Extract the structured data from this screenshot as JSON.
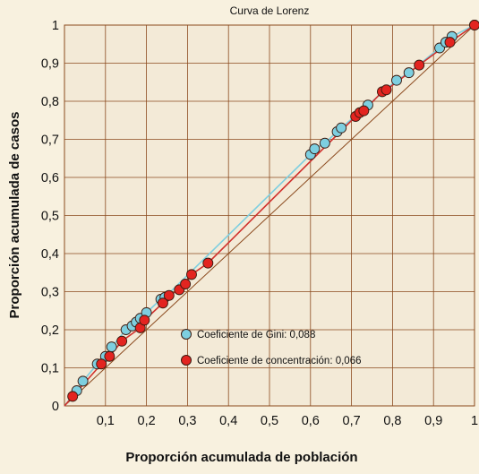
{
  "colors": {
    "background": "#f8f1df",
    "plot_background": "#f3ead7",
    "grid": "#8b4a1e",
    "diagonal": "#8b4a1e",
    "gini_fill": "#7dcfe0",
    "gini_line": "#7dcfe0",
    "conc_fill": "#e32420",
    "conc_line": "#d0312d",
    "marker_stroke": "#3a1a10",
    "text": "#111111"
  },
  "chart_data": {
    "type": "scatter",
    "title": "Curva de Lorenz",
    "xlabel": "Proporción acumulada de población",
    "ylabel": "Proporción acumulada de casos",
    "xlim": [
      0,
      1
    ],
    "ylim": [
      0,
      1
    ],
    "x_ticks": [
      "0,1",
      "0,2",
      "0,3",
      "0,4",
      "0,5",
      "0,6",
      "0,7",
      "0,8",
      "0,9",
      "1"
    ],
    "y_ticks": [
      "0",
      "0,1",
      "0,2",
      "0,3",
      "0,4",
      "0,5",
      "0,6",
      "0,7",
      "0,8",
      "0,9",
      "1"
    ],
    "grid": true,
    "legend_position": "center-inside",
    "series": [
      {
        "name": "Coeficiente de Gini: 0,088",
        "color": "#7dcfe0",
        "points": [
          [
            0.03,
            0.04
          ],
          [
            0.045,
            0.065
          ],
          [
            0.08,
            0.11
          ],
          [
            0.1,
            0.13
          ],
          [
            0.115,
            0.155
          ],
          [
            0.15,
            0.2
          ],
          [
            0.165,
            0.21
          ],
          [
            0.175,
            0.22
          ],
          [
            0.185,
            0.23
          ],
          [
            0.2,
            0.245
          ],
          [
            0.235,
            0.28
          ],
          [
            0.245,
            0.285
          ],
          [
            0.6,
            0.66
          ],
          [
            0.61,
            0.675
          ],
          [
            0.635,
            0.69
          ],
          [
            0.665,
            0.72
          ],
          [
            0.675,
            0.73
          ],
          [
            0.74,
            0.79
          ],
          [
            0.81,
            0.855
          ],
          [
            0.84,
            0.875
          ],
          [
            0.915,
            0.94
          ],
          [
            0.93,
            0.955
          ],
          [
            0.945,
            0.97
          ],
          [
            1.0,
            1.0
          ]
        ]
      },
      {
        "name": "Coeficiente de concentración: 0,066",
        "color": "#e32420",
        "points": [
          [
            0.02,
            0.025
          ],
          [
            0.09,
            0.11
          ],
          [
            0.11,
            0.13
          ],
          [
            0.14,
            0.17
          ],
          [
            0.185,
            0.205
          ],
          [
            0.195,
            0.225
          ],
          [
            0.24,
            0.27
          ],
          [
            0.255,
            0.29
          ],
          [
            0.28,
            0.305
          ],
          [
            0.295,
            0.32
          ],
          [
            0.31,
            0.345
          ],
          [
            0.35,
            0.375
          ],
          [
            0.71,
            0.76
          ],
          [
            0.72,
            0.77
          ],
          [
            0.73,
            0.775
          ],
          [
            0.775,
            0.825
          ],
          [
            0.785,
            0.83
          ],
          [
            0.865,
            0.895
          ],
          [
            0.94,
            0.955
          ],
          [
            1.0,
            1.0
          ]
        ]
      }
    ]
  }
}
